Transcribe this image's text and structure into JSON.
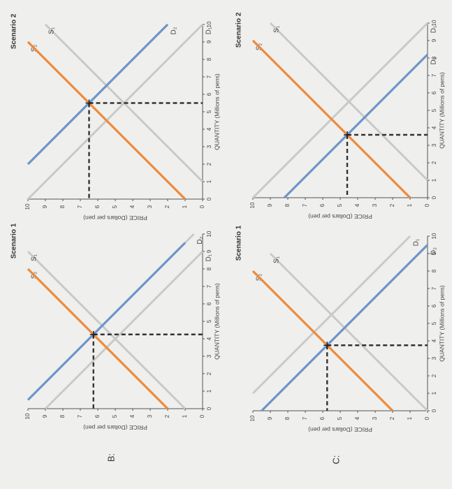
{
  "chart_data": [
    {
      "type": "line",
      "title": "Scenario 1",
      "label": "B:",
      "x_label": "QUANTITY (Millions of pens)",
      "y_label": "PRICE (Dollars per pen)",
      "xlim": [
        0,
        10
      ],
      "ylim": [
        0,
        10
      ],
      "xticks": [
        0,
        1,
        2,
        3,
        4,
        5,
        6,
        7,
        8,
        9,
        10
      ],
      "yticks": [
        0,
        1,
        2,
        3,
        4,
        5,
        6,
        7,
        8,
        9,
        10
      ],
      "series": [
        {
          "name": "S₁",
          "color": "#c9c9c9",
          "x": [
            0,
            9
          ],
          "values": [
            1,
            10
          ]
        },
        {
          "name": "S₂",
          "color": "#c9c9c9",
          "x": [
            0,
            8
          ],
          "values": [
            2,
            10
          ]
        },
        {
          "name": "D₂",
          "color": "#c9c9c9",
          "x": [
            0.5,
            10
          ],
          "values": [
            10,
            0.5
          ]
        },
        {
          "name": "D₁",
          "color": "#c9c9c9",
          "x": [
            0,
            9
          ],
          "values": [
            9,
            0
          ]
        }
      ],
      "supply": {
        "color": "#ef8a3a",
        "x": [
          0,
          8
        ],
        "values": [
          2,
          10
        ]
      },
      "demand": {
        "color": "#6f94c9",
        "x": [
          0.5,
          9.5
        ],
        "values": [
          10,
          1
        ]
      },
      "equilibrium": {
        "x": 4.25,
        "y": 6.25
      }
    },
    {
      "type": "line",
      "title": "Scenario 2",
      "x_label": "QUANTITY (Millions of pens)",
      "y_label": "PRICE (Dollars per pen)",
      "xlim": [
        0,
        10
      ],
      "ylim": [
        0,
        10
      ],
      "xticks": [
        0,
        1,
        2,
        3,
        4,
        5,
        6,
        7,
        8,
        9,
        10
      ],
      "yticks": [
        0,
        1,
        2,
        3,
        4,
        5,
        6,
        7,
        8,
        9,
        10
      ],
      "series": [
        {
          "name": "S₂",
          "color": "#c9c9c9",
          "x": [
            0,
            9
          ],
          "values": [
            1,
            10
          ]
        },
        {
          "name": "S₁",
          "color": "#c9c9c9",
          "x": [
            1,
            10
          ],
          "values": [
            0,
            9
          ]
        },
        {
          "name": "D₂",
          "color": "#c9c9c9",
          "x": [
            2,
            10
          ],
          "values": [
            10,
            2
          ]
        },
        {
          "name": "D₁",
          "color": "#c9c9c9",
          "x": [
            0,
            10
          ],
          "values": [
            10,
            0
          ]
        }
      ],
      "supply": {
        "color": "#ef8a3a",
        "x": [
          0,
          9
        ],
        "values": [
          1,
          10
        ]
      },
      "demand": {
        "color": "#6f94c9",
        "x": [
          2,
          10
        ],
        "values": [
          10,
          2
        ]
      },
      "equilibrium": {
        "x": 5.5,
        "y": 6.5
      }
    },
    {
      "type": "line",
      "title": "Scenario 1",
      "label": "C:",
      "x_label": "QUANTITY (Millions of pens)",
      "y_label": "PRICE (Dollars per pen)",
      "xlim": [
        0,
        10
      ],
      "ylim": [
        0,
        10
      ],
      "xticks": [
        0,
        1,
        2,
        3,
        4,
        5,
        6,
        7,
        8,
        9,
        10
      ],
      "yticks": [
        0,
        1,
        2,
        3,
        4,
        5,
        6,
        7,
        8,
        9,
        10
      ],
      "series": [
        {
          "name": "S₂",
          "color": "#c9c9c9",
          "x": [
            0,
            8
          ],
          "values": [
            2,
            10
          ]
        },
        {
          "name": "S₁",
          "color": "#c9c9c9",
          "x": [
            0,
            9
          ],
          "values": [
            0,
            9
          ]
        },
        {
          "name": "D₁",
          "color": "#c9c9c9",
          "x": [
            1,
            10
          ],
          "values": [
            10,
            1
          ]
        },
        {
          "name": "D₂",
          "color": "#c9c9c9",
          "x": [
            0,
            9.5
          ],
          "values": [
            9.5,
            0
          ]
        }
      ],
      "supply": {
        "color": "#ef8a3a",
        "x": [
          0,
          8
        ],
        "values": [
          2,
          10
        ]
      },
      "demand": {
        "color": "#6f94c9",
        "x": [
          0,
          9.5
        ],
        "values": [
          9.5,
          0
        ]
      },
      "equilibrium": {
        "x": 3.75,
        "y": 5.75
      }
    },
    {
      "type": "line",
      "title": "Scenario 2",
      "x_label": "QUANTITY (Millions of pens)",
      "y_label": "PRICE (Dollars per pen)",
      "xlim": [
        0,
        10
      ],
      "ylim": [
        0,
        10
      ],
      "xticks": [
        0,
        1,
        2,
        3,
        4,
        5,
        6,
        7,
        8,
        9,
        10
      ],
      "yticks": [
        0,
        1,
        2,
        3,
        4,
        5,
        6,
        7,
        8,
        9,
        10
      ],
      "series": [
        {
          "name": "S₂",
          "color": "#c9c9c9",
          "x": [
            0,
            9
          ],
          "values": [
            1,
            10
          ]
        },
        {
          "name": "S₁",
          "color": "#c9c9c9",
          "x": [
            1,
            10
          ],
          "values": [
            0,
            9
          ]
        },
        {
          "name": "D₁",
          "color": "#c9c9c9",
          "x": [
            0,
            10
          ],
          "values": [
            10,
            0
          ]
        },
        {
          "name": "D₂",
          "color": "#c9c9c9",
          "x": [
            0,
            8.2
          ],
          "values": [
            8.2,
            0
          ]
        }
      ],
      "supply": {
        "color": "#ef8a3a",
        "x": [
          0,
          9
        ],
        "values": [
          1,
          10
        ]
      },
      "demand": {
        "color": "#6f94c9",
        "x": [
          0,
          8.2
        ],
        "values": [
          8.2,
          0
        ]
      },
      "equilibrium": {
        "x": 3.6,
        "y": 4.6
      }
    }
  ]
}
